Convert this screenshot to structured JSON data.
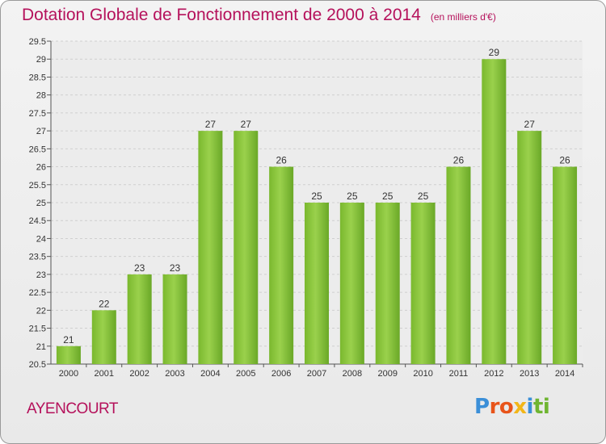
{
  "title": "Dotation Globale de Fonctionnement de 2000 à 2014",
  "unit": "(en milliers d'€)",
  "commune": "AYENCOURT",
  "logo": {
    "parts": [
      "P",
      "ro",
      "x",
      "i",
      "ti"
    ],
    "colors": [
      "#3b8fd8",
      "#e8541a",
      "#f2b619",
      "#3b8fd8",
      "#6fb531"
    ]
  },
  "colors": {
    "bar": "#8cc63f",
    "title": "#b5115b",
    "grid": "#cfcfcf"
  },
  "chart_data": {
    "type": "bar",
    "categories": [
      "2000",
      "2001",
      "2002",
      "2003",
      "2004",
      "2005",
      "2006",
      "2007",
      "2008",
      "2009",
      "2010",
      "2011",
      "2012",
      "2013",
      "2014"
    ],
    "values": [
      21,
      22,
      23,
      23,
      27,
      27,
      26,
      25,
      25,
      25,
      25,
      26,
      29,
      27,
      26
    ],
    "yticks": [
      "20.5",
      "21",
      "21.5",
      "22",
      "22.5",
      "23",
      "23.5",
      "24",
      "24.5",
      "25",
      "25.5",
      "26",
      "26.5",
      "27",
      "27.5",
      "28",
      "28.5",
      "29",
      "29.5"
    ],
    "ylim": [
      20.5,
      29.5
    ],
    "grid": true,
    "title": "Dotation Globale de Fonctionnement de 2000 à 2014",
    "ylabel": "(en milliers d'€)"
  }
}
